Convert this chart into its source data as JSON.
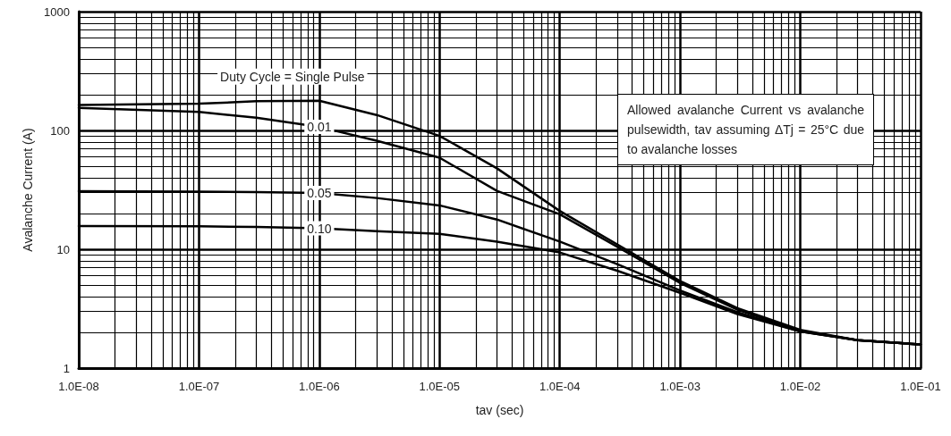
{
  "chart_data": {
    "type": "line",
    "xlabel": "tav (sec)",
    "ylabel": "Avalanche Current (A)",
    "log": "xy",
    "grid": true,
    "legend": false,
    "marker": "none",
    "line_style": "solid",
    "x": [
      1e-08,
      1e-07,
      3e-07,
      1e-06,
      3e-06,
      1e-05,
      3e-05,
      0.0001,
      0.0003,
      0.001,
      0.003,
      0.01,
      0.03,
      0.1
    ],
    "xlim": [
      1e-08,
      0.1
    ],
    "ylim": [
      1,
      1000
    ],
    "xticks": [
      {
        "value": 1e-08,
        "label": "1.0E-08"
      },
      {
        "value": 1e-07,
        "label": "1.0E-07"
      },
      {
        "value": 1e-06,
        "label": "1.0E-06"
      },
      {
        "value": 1e-05,
        "label": "1.0E-05"
      },
      {
        "value": 0.0001,
        "label": "1.0E-04"
      },
      {
        "value": 0.001,
        "label": "1.0E-03"
      },
      {
        "value": 0.01,
        "label": "1.0E-02"
      },
      {
        "value": 0.1,
        "label": "1.0E-01"
      }
    ],
    "yticks": [
      1,
      10,
      100,
      1000
    ],
    "series": [
      {
        "name": "Duty Cycle = Single Pulse",
        "color": "#000000",
        "values": [
          164,
          168,
          176,
          178,
          135,
          90,
          48,
          21,
          11,
          5.4,
          3.2,
          2.1,
          1.72,
          1.58
        ]
      },
      {
        "name": "0.01",
        "color": "#000000",
        "values": [
          155,
          143,
          128,
          107,
          82,
          59,
          31,
          19.7,
          10.5,
          5.2,
          3.1,
          2.05,
          1.72,
          1.58
        ]
      },
      {
        "name": "0.05",
        "color": "#000000",
        "values": [
          30.8,
          30.5,
          30.3,
          29.8,
          27,
          23.4,
          17.8,
          11.6,
          7.5,
          4.5,
          2.95,
          2.03,
          1.72,
          1.58
        ]
      },
      {
        "name": "0.10",
        "color": "#000000",
        "values": [
          15.7,
          15.6,
          15.4,
          15,
          14.2,
          13.5,
          11.6,
          9.4,
          6.6,
          4.3,
          2.85,
          2.03,
          1.72,
          1.58
        ]
      }
    ],
    "annotations": [
      "Allowed avalanche Current vs avalanche pulsewidth, tav assuming ΔTj = 25°C due to avalanche losses"
    ]
  }
}
